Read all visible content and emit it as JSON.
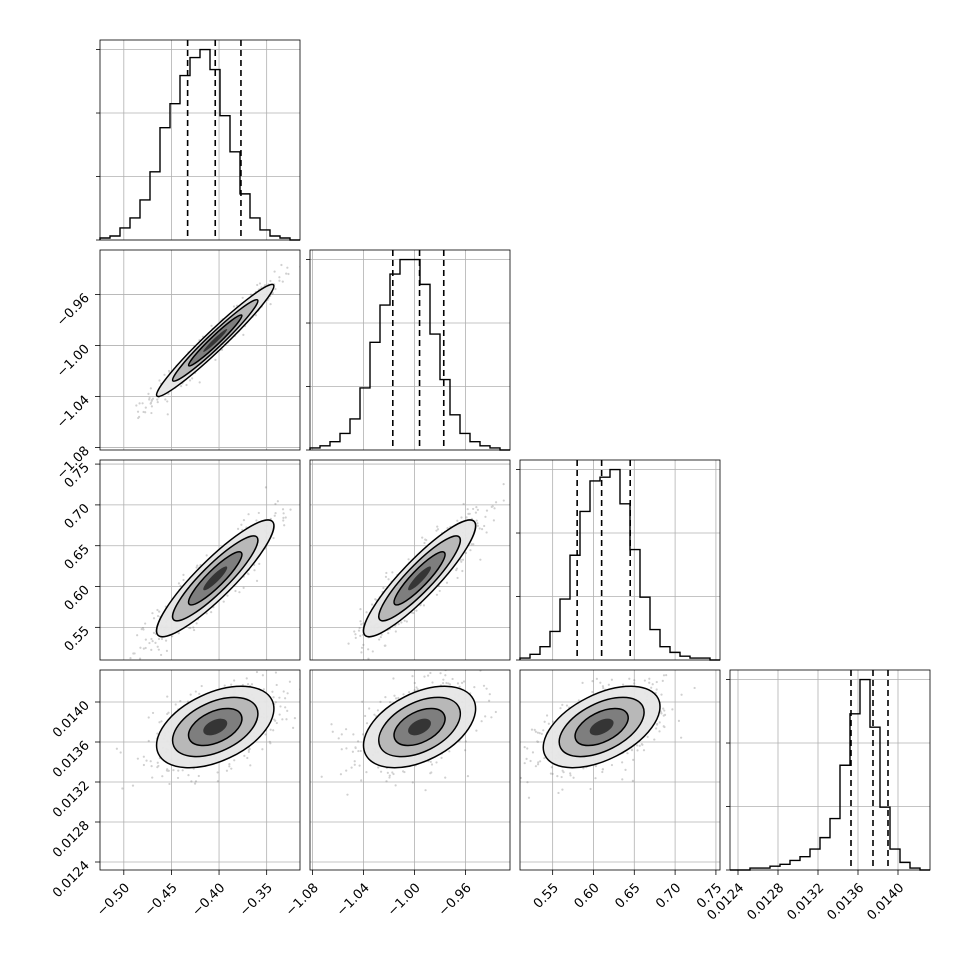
{
  "chart_data": {
    "type": "corner",
    "title": "",
    "parameters": [
      {
        "ticks": [
          -0.5,
          -0.45,
          -0.4,
          -0.35
        ],
        "tick_labels": [
          "−0.50",
          "−0.45",
          "−0.40",
          "−0.35"
        ],
        "range": [
          -0.525,
          -0.315
        ],
        "quantiles": [
          -0.433,
          -0.404,
          -0.377
        ],
        "hist_counts": [
          1,
          2,
          6,
          11,
          20,
          34,
          56,
          68,
          82,
          91,
          95,
          85,
          62,
          44,
          23,
          11,
          5,
          2,
          1,
          0
        ]
      },
      {
        "ticks": [
          -1.08,
          -1.04,
          -1.0,
          -0.96
        ],
        "tick_labels": [
          "−1.08",
          "−1.04",
          "−1.00",
          "−0.96"
        ],
        "range": [
          -1.082,
          -0.925
        ],
        "quantiles": [
          -1.017,
          -0.996,
          -0.977
        ],
        "hist_counts": [
          1,
          2,
          4,
          8,
          15,
          30,
          52,
          70,
          85,
          92,
          92,
          80,
          56,
          34,
          17,
          8,
          4,
          2,
          1,
          0
        ]
      },
      {
        "ticks": [
          0.55,
          0.6,
          0.65,
          0.7,
          0.75
        ],
        "tick_labels": [
          "0.55",
          "0.60",
          "0.65",
          "0.70",
          "0.75"
        ],
        "range": [
          0.51,
          0.755
        ],
        "quantiles": [
          0.58,
          0.61,
          0.645
        ],
        "hist_counts": [
          1,
          3,
          7,
          15,
          32,
          55,
          78,
          94,
          96,
          100,
          82,
          58,
          33,
          16,
          7,
          4,
          2,
          1,
          1,
          0
        ]
      },
      {
        "ticks": [
          0.0124,
          0.0128,
          0.0132,
          0.0136,
          0.014
        ],
        "tick_labels": [
          "0.0124",
          "0.0128",
          "0.0132",
          "0.0136",
          "0.0140"
        ],
        "range": [
          0.01232,
          0.01432
        ],
        "quantiles": [
          0.01353,
          0.01375,
          0.0139
        ],
        "hist_counts": [
          0,
          0,
          1,
          1,
          2,
          3,
          5,
          7,
          11,
          17,
          27,
          55,
          82,
          100,
          75,
          33,
          11,
          4,
          1,
          0
        ]
      }
    ],
    "pair_correlations": {
      "1-0": 0.97,
      "2-0": 0.9,
      "2-1": 0.9,
      "3-0": 0.45,
      "3-1": 0.45,
      "3-2": 0.5
    },
    "density_levels": [
      "1-sigma",
      "1.5-sigma",
      "2-sigma"
    ]
  }
}
